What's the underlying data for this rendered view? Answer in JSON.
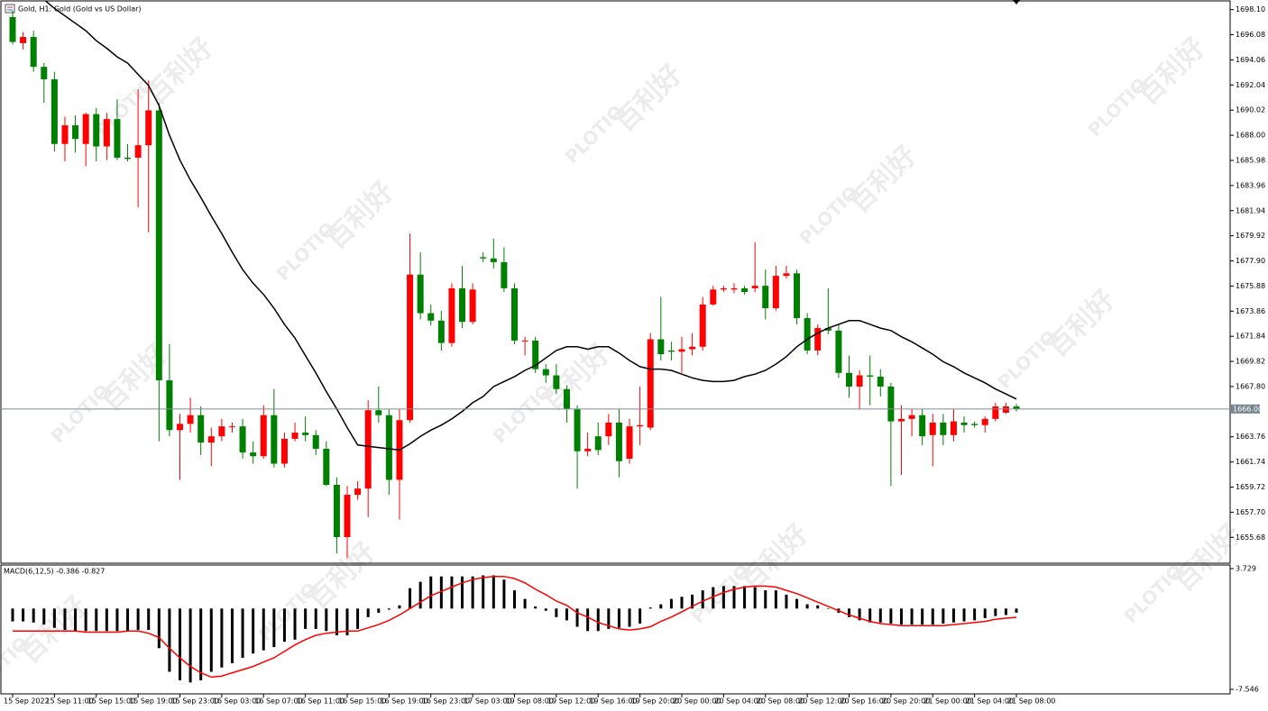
{
  "chart_data": [
    {
      "type": "candlestick",
      "title": "Gold, H1: Gold (Gold vs US Dollar)",
      "categories": [
        "15 Sep 2022",
        null,
        null,
        null,
        "15 Sep 11:00",
        null,
        null,
        null,
        "15 Sep 15:00",
        null,
        null,
        null,
        "15 Sep 19:00",
        null,
        null,
        null,
        "15 Sep 23:00",
        null,
        null,
        null,
        "16 Sep 03:00",
        null,
        null,
        null,
        "16 Sep 07:00",
        null,
        null,
        null,
        "16 Sep 11:00",
        null,
        null,
        null,
        "16 Sep 15:00",
        null,
        null,
        null,
        "16 Sep 19:00",
        null,
        null,
        null,
        "16 Sep 23:00",
        null,
        null,
        null,
        "17 Sep 03:00",
        null,
        null,
        null,
        "19 Sep 08:00",
        null,
        null,
        null,
        "19 Sep 12:00",
        null,
        null,
        null,
        "19 Sep 16:00",
        null,
        null,
        null,
        "19 Sep 20:00",
        null,
        null,
        null,
        "20 Sep 00:00",
        null,
        null,
        null,
        "20 Sep 04:00",
        null,
        null,
        null,
        "20 Sep 08:00",
        null,
        null,
        null,
        "20 Sep 12:00",
        null,
        null,
        null,
        "20 Sep 16:00",
        null,
        null,
        null,
        "20 Sep 20:00",
        null,
        null,
        null,
        "21 Sep 00:00",
        null,
        null,
        null,
        "21 Sep 04:00",
        null,
        null,
        null,
        "21 Sep 08:00"
      ],
      "open": [
        1697.5,
        1695.4,
        1695.9,
        1693.5,
        1692.5,
        1687.3,
        1688.8,
        1687.3,
        1689.7,
        1687.1,
        1689.3,
        1686.2,
        1686.2,
        1687.2,
        1690.0,
        1668.3,
        1664.3,
        1664.8,
        1665.5,
        1663.3,
        1663.8,
        1664.6,
        1664.6,
        1662.5,
        1662.2,
        1665.5,
        1661.6,
        1663.6,
        1664.1,
        1663.9,
        1662.8,
        1659.9,
        1655.7,
        1659.1,
        1659.6,
        1665.9,
        1665.5,
        1660.3,
        1665.1,
        1676.8,
        1673.7,
        1673.1,
        1671.3,
        1675.7,
        1673.0,
        1678.2,
        1678.1,
        1677.8,
        1675.7,
        1671.5,
        1671.5,
        1669.2,
        1668.7,
        1667.6,
        1666.0,
        1662.6,
        1663.8,
        1663.8,
        1664.9,
        1662.0,
        1664.6,
        1664.5,
        1671.6,
        1670.7,
        1670.6,
        1670.8,
        1671.0,
        1674.4,
        1675.6,
        1675.6,
        1675.7,
        1675.7,
        1675.9,
        1674.1,
        1676.7,
        1676.9,
        1673.3,
        1670.7,
        1672.5,
        1672.3,
        1668.9,
        1667.8,
        1668.7,
        1668.6,
        1667.8,
        1665.0,
        1665.2,
        1665.5,
        1663.9,
        1664.9,
        1663.9,
        1664.9,
        1664.8,
        1664.7,
        1665.2,
        1665.7,
        1666.2
      ],
      "high": [
        1698.0,
        1696.3,
        1696.4,
        1693.8,
        1693.1,
        1689.5,
        1689.6,
        1689.8,
        1690.2,
        1689.8,
        1690.9,
        1687.3,
        1691.7,
        1692.4,
        1690.6,
        1671.2,
        1665.6,
        1666.9,
        1666.2,
        1664.5,
        1665.2,
        1664.9,
        1665.2,
        1663.4,
        1666.3,
        1667.6,
        1664.1,
        1664.9,
        1665.4,
        1664.3,
        1663.4,
        1660.5,
        1659.8,
        1660.2,
        1666.7,
        1667.8,
        1666.0,
        1666.0,
        1680.1,
        1678.6,
        1674.4,
        1673.9,
        1676.1,
        1677.5,
        1676.1,
        1678.6,
        1679.7,
        1679.0,
        1676.1,
        1671.8,
        1671.8,
        1669.6,
        1669.6,
        1667.9,
        1666.3,
        1664.1,
        1664.9,
        1665.6,
        1666.0,
        1665.2,
        1667.8,
        1672.1,
        1675.0,
        1671.4,
        1671.8,
        1672.1,
        1675.0,
        1675.9,
        1675.9,
        1676.1,
        1675.9,
        1679.4,
        1677.2,
        1677.5,
        1677.5,
        1677.2,
        1673.7,
        1672.8,
        1675.7,
        1672.8,
        1670.3,
        1669.1,
        1670.3,
        1669.2,
        1668.1,
        1666.3,
        1666.0,
        1666.0,
        1665.6,
        1665.6,
        1666.0,
        1665.4,
        1665.0,
        1665.4,
        1666.5,
        1666.5,
        1666.4
      ],
      "low": [
        1695.3,
        1694.9,
        1693.1,
        1690.6,
        1686.7,
        1685.9,
        1686.6,
        1685.5,
        1685.9,
        1686.0,
        1686.0,
        1685.9,
        1682.2,
        1680.2,
        1663.4,
        1663.8,
        1660.3,
        1664.1,
        1662.3,
        1661.4,
        1663.4,
        1664.1,
        1662.0,
        1661.6,
        1662.0,
        1661.3,
        1661.3,
        1663.4,
        1663.4,
        1662.3,
        1659.8,
        1654.4,
        1654.0,
        1658.7,
        1657.3,
        1664.9,
        1659.1,
        1657.1,
        1664.9,
        1673.2,
        1672.7,
        1670.7,
        1671.0,
        1672.5,
        1672.8,
        1677.8,
        1677.3,
        1675.4,
        1671.2,
        1670.3,
        1668.9,
        1668.1,
        1667.2,
        1664.9,
        1659.6,
        1662.2,
        1662.3,
        1663.1,
        1660.5,
        1661.6,
        1663.1,
        1664.3,
        1669.9,
        1669.9,
        1668.9,
        1670.3,
        1670.7,
        1674.3,
        1675.4,
        1675.3,
        1675.2,
        1675.4,
        1673.2,
        1673.9,
        1676.5,
        1672.8,
        1670.4,
        1670.3,
        1672.0,
        1668.5,
        1666.9,
        1666.0,
        1666.3,
        1667.0,
        1659.8,
        1660.7,
        1663.8,
        1663.1,
        1661.4,
        1663.1,
        1663.4,
        1664.1,
        1664.5,
        1664.1,
        1665.0,
        1665.6,
        1665.8
      ],
      "close": [
        1695.5,
        1695.9,
        1693.5,
        1692.5,
        1687.3,
        1688.8,
        1687.7,
        1689.7,
        1687.1,
        1689.3,
        1686.2,
        1686.1,
        1687.2,
        1690.0,
        1668.3,
        1664.3,
        1664.8,
        1665.5,
        1663.3,
        1663.8,
        1664.6,
        1664.6,
        1662.5,
        1662.2,
        1665.5,
        1661.6,
        1663.6,
        1664.1,
        1663.9,
        1662.8,
        1659.9,
        1655.7,
        1659.1,
        1659.6,
        1665.9,
        1665.5,
        1660.3,
        1665.1,
        1676.8,
        1673.7,
        1673.1,
        1671.3,
        1675.7,
        1673.0,
        1675.6,
        1678.1,
        1677.8,
        1675.7,
        1671.5,
        1671.5,
        1669.2,
        1668.7,
        1667.6,
        1666.0,
        1662.6,
        1662.8,
        1662.7,
        1664.9,
        1661.8,
        1664.6,
        1664.7,
        1671.6,
        1670.4,
        1670.6,
        1670.8,
        1671.0,
        1674.4,
        1675.6,
        1675.7,
        1675.7,
        1675.4,
        1675.9,
        1674.1,
        1676.7,
        1676.9,
        1673.3,
        1670.7,
        1672.5,
        1672.3,
        1668.9,
        1667.8,
        1668.7,
        1668.6,
        1667.8,
        1665.0,
        1665.2,
        1665.5,
        1663.8,
        1664.9,
        1663.9,
        1665.0,
        1664.7,
        1664.7,
        1665.2,
        1666.2,
        1666.2,
        1666.0
      ],
      "up_color": "#ff0000",
      "down_color": "#008000",
      "ma": {
        "color": "#000000",
        "values": [
          1700.3,
          1699.9,
          1699.4,
          1698.9,
          1698.2,
          1697.6,
          1697.0,
          1696.4,
          1695.6,
          1695.0,
          1694.3,
          1693.8,
          1692.9,
          1692.0,
          1690.4,
          1688.0,
          1686.0,
          1684.4,
          1683.0,
          1681.5,
          1680.1,
          1678.6,
          1677.2,
          1676.1,
          1675.2,
          1674.1,
          1672.8,
          1671.7,
          1670.3,
          1668.9,
          1667.4,
          1666.0,
          1664.5,
          1663.1,
          1663.0,
          1662.9,
          1662.8,
          1662.7,
          1663.2,
          1663.8,
          1664.3,
          1664.7,
          1665.2,
          1665.8,
          1666.5,
          1667.0,
          1667.8,
          1668.2,
          1668.6,
          1669.1,
          1669.5,
          1670.1,
          1670.7,
          1671.0,
          1671.0,
          1670.8,
          1671.0,
          1671.0,
          1670.5,
          1669.9,
          1669.4,
          1669.2,
          1669.2,
          1669.1,
          1668.8,
          1668.5,
          1668.3,
          1668.2,
          1668.2,
          1668.3,
          1668.6,
          1668.8,
          1669.1,
          1669.6,
          1670.2,
          1671.0,
          1671.6,
          1672.1,
          1672.5,
          1672.8,
          1673.1,
          1673.1,
          1672.8,
          1672.5,
          1672.3,
          1671.8,
          1671.4,
          1670.9,
          1670.4,
          1669.8,
          1669.4,
          1668.9,
          1668.5,
          1668.1,
          1667.6,
          1667.2,
          1666.8
        ]
      },
      "current_price": {
        "value": 1666,
        "label": "1666.00"
      },
      "ylim": [
        1653.6,
        1698.8
      ],
      "yticks": [
        {
          "value": 1698.1,
          "label": "1698.10"
        },
        1696.08,
        1694.06,
        1692.04,
        1690.02,
        {
          "value": 1688,
          "label": "1688.00"
        },
        1685.98,
        1683.96,
        1681.94,
        1679.92,
        {
          "value": 1677.9,
          "label": "1677.90"
        },
        1675.88,
        1673.86,
        1671.84,
        1669.82,
        {
          "value": 1667.8,
          "label": "1667.80"
        },
        1663.76,
        1661.74,
        1659.72,
        {
          "value": 1657.7,
          "label": "1657.70"
        },
        1655.68
      ]
    },
    {
      "type": "macd",
      "title": "MACD(6,12,5) -0.386 -0.827",
      "histogram": {
        "color": "#000000",
        "values": [
          -1.2,
          -1.2,
          -1.3,
          -1.5,
          -1.8,
          -2.0,
          -2.1,
          -2.1,
          -2.1,
          -2.1,
          -2.1,
          -2.1,
          -2.0,
          -2.0,
          -3.7,
          -5.9,
          -6.7,
          -6.9,
          -6.7,
          -5.9,
          -5.5,
          -5.1,
          -4.6,
          -4.2,
          -3.9,
          -3.6,
          -3.1,
          -2.9,
          -1.9,
          -1.9,
          -2.1,
          -2.5,
          -2.5,
          -1.9,
          -0.8,
          -0.4,
          -0.1,
          0.3,
          1.9,
          2.5,
          3.0,
          3.0,
          3.0,
          3.0,
          3.0,
          3.1,
          3.1,
          2.7,
          1.7,
          0.9,
          0.2,
          -0.2,
          -0.8,
          -1.1,
          -1.7,
          -2.1,
          -2.1,
          -1.9,
          -1.8,
          -1.7,
          -1.4,
          0.1,
          0.4,
          0.9,
          1.1,
          1.3,
          1.7,
          2.0,
          2.1,
          2.1,
          2.1,
          2.0,
          1.7,
          1.7,
          1.3,
          0.9,
          0.4,
          0.3,
          0,
          -0.4,
          -0.8,
          -1.1,
          -1.3,
          -1.3,
          -1.4,
          -1.5,
          -1.5,
          -1.5,
          -1.5,
          -1.4,
          -1.3,
          -1.2,
          -1.1,
          -0.9,
          -0.7,
          -0.6,
          -0.386
        ]
      },
      "signal": {
        "color": "#ff0000",
        "values": [
          -2.1,
          -2.1,
          -2.1,
          -2.1,
          -2.1,
          -2.1,
          -2.1,
          -2.2,
          -2.2,
          -2.2,
          -2.2,
          -2.1,
          -2.1,
          -2.3,
          -2.7,
          -3.7,
          -4.6,
          -5.4,
          -6.0,
          -6.4,
          -6.3,
          -6.0,
          -5.7,
          -5.4,
          -5.0,
          -4.6,
          -4.0,
          -3.4,
          -2.9,
          -2.5,
          -2.3,
          -2.2,
          -2.1,
          -2.1,
          -1.8,
          -1.5,
          -1.1,
          -0.6,
          0.0,
          0.6,
          1.2,
          1.6,
          2.0,
          2.4,
          2.7,
          2.9,
          3.0,
          3.0,
          2.8,
          2.4,
          1.8,
          1.3,
          0.7,
          0.3,
          -0.4,
          -0.8,
          -1.3,
          -1.6,
          -1.9,
          -2.0,
          -1.9,
          -1.7,
          -1.2,
          -0.8,
          -0.3,
          0.2,
          0.7,
          1.1,
          1.5,
          1.8,
          2.0,
          2.1,
          2.1,
          2.0,
          1.7,
          1.4,
          1.0,
          0.6,
          0.2,
          -0.2,
          -0.6,
          -0.9,
          -1.2,
          -1.4,
          -1.5,
          -1.6,
          -1.6,
          -1.6,
          -1.6,
          -1.6,
          -1.5,
          -1.4,
          -1.3,
          -1.2,
          -1.0,
          -0.9,
          -0.827
        ]
      },
      "ylim": [
        -7.546,
        3.729
      ],
      "yticks": [
        3.729,
        -7.546
      ]
    }
  ],
  "watermark": {
    "text": "百利好",
    "logo": "PLOTIO"
  }
}
